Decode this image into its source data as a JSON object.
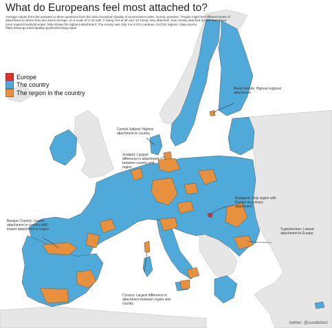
{
  "title": "What do Europeans feel most attached to?",
  "subtitle": "Average values from the answers to three questions from the 2021 European Quality of Government Index. Survey question: 'People might feel different levels of attachment to where they live and to Europe, on a scale of 1–10 with '1' being 'not at all' and '10' being 'very attached', how closely attached do you feel (about (your region/country/Europe). Map shows the highest attachment. The survey was only run in EU countries. NUTS2 regions. Data source: https://www.gu.se/en/quality-government/qog-data/",
  "colors": {
    "europe": "#d9342b",
    "country": "#4fa9d9",
    "region": "#e7913e",
    "non_eu": "#e6e6e6",
    "sea": "#ffffff",
    "border": "#555555"
  },
  "legend": {
    "items": [
      {
        "label": "Europe",
        "color": "#d9342b"
      },
      {
        "label": "The country",
        "color": "#4fa9d9"
      },
      {
        "label": "The region in the country",
        "color": "#e7913e"
      }
    ]
  },
  "annotations": {
    "aland": "Åland Islands: Highest regional attachment",
    "central_jutland": "Central Jutland: Highest attachment to country",
    "zealand": "Zealand: Largest difference in attachment between country and region",
    "budapest": "Budapest: Only region with Europe as primary attachment",
    "basque": "Basque Country: Lowest attachment to country AND lowest attachment to region",
    "yugoiztochen": "Yugoiztochen: Lowest attachment to Europe",
    "corsica": "Corsica: Largest difference in attachment between region and country"
  },
  "credit": "twitter: @sundeliviz"
}
